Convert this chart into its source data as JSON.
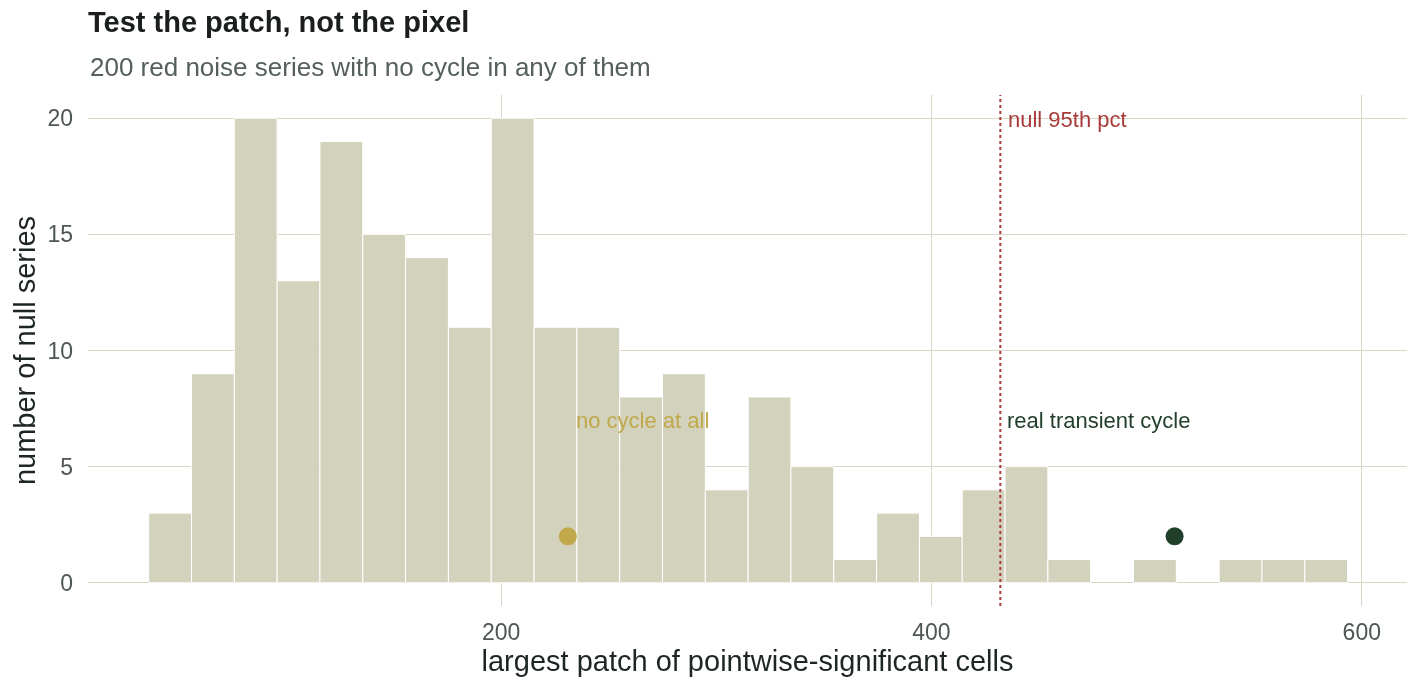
{
  "chart_data": {
    "type": "histogram",
    "title": "Test the patch, not the pixel",
    "subtitle": "200 red noise series with no cycle in any of them",
    "xlabel": "largest patch of pointwise-significant cells",
    "ylabel": "number of null series",
    "bins": [
      36.2,
      56.1,
      76.0,
      95.9,
      115.8,
      135.7,
      155.6,
      175.5,
      195.4,
      215.3,
      235.2,
      255.1,
      275.0,
      294.9,
      314.8,
      334.7,
      354.6,
      374.5,
      394.4,
      414.3,
      434.2,
      454.1,
      474.0,
      493.9,
      513.8,
      533.7,
      553.6,
      573.5,
      593.4
    ],
    "series": [
      {
        "color": "#d3d2bd",
        "values": [
          3,
          9,
          20,
          13,
          19,
          15,
          14,
          11,
          20,
          11,
          11,
          8,
          9,
          4,
          8,
          5,
          1,
          3,
          2,
          4,
          5,
          1,
          0,
          1,
          0,
          1,
          1,
          1
        ]
      },
      {
        "type": "scatter",
        "x": [
          231,
          513
        ],
        "values": [
          2,
          2
        ],
        "colors": [
          "#c1a84b",
          "#213f2b"
        ]
      }
    ],
    "annotations": [
      {
        "text": "no cycle at all",
        "x": 234,
        "y": 7
      },
      {
        "text": "real transient cycle",
        "x": 434,
        "y": 7
      }
    ],
    "ref_lines": [
      {
        "axis": "x",
        "value": 432,
        "label": "null 95th pct",
        "color": "#a83a3a",
        "line_style": "dotted"
      }
    ],
    "xlim": [
      8,
      621
    ],
    "ylim": [
      -1,
      21
    ],
    "xticks": [
      200,
      400,
      600
    ],
    "yticks": [
      0,
      5,
      10,
      15,
      20
    ],
    "grid": true,
    "marker": "circle"
  }
}
